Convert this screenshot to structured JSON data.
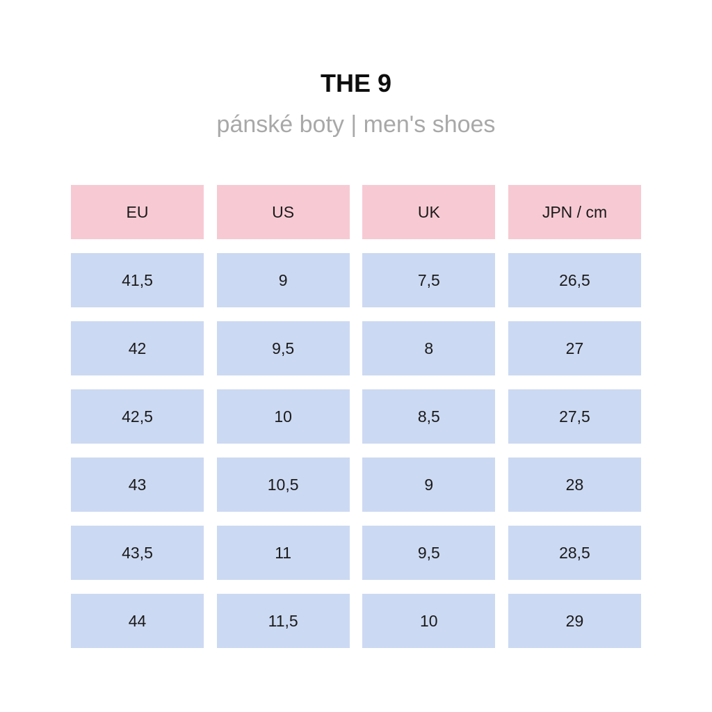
{
  "title": "THE 9",
  "subtitle": "pánské boty | men's shoes",
  "colors": {
    "header_bg": "#f7cad3",
    "cell_bg": "#ccd9f2",
    "title": "#0d0d0d",
    "subtitle": "#a8a8a8"
  },
  "table": {
    "headers": [
      "EU",
      "US",
      "UK",
      "JPN / cm"
    ],
    "rows": [
      [
        "41,5",
        "9",
        "7,5",
        "26,5"
      ],
      [
        "42",
        "9,5",
        "8",
        "27"
      ],
      [
        "42,5",
        "10",
        "8,5",
        "27,5"
      ],
      [
        "43",
        "10,5",
        "9",
        "28"
      ],
      [
        "43,5",
        "11",
        "9,5",
        "28,5"
      ],
      [
        "44",
        "11,5",
        "10",
        "29"
      ]
    ]
  }
}
